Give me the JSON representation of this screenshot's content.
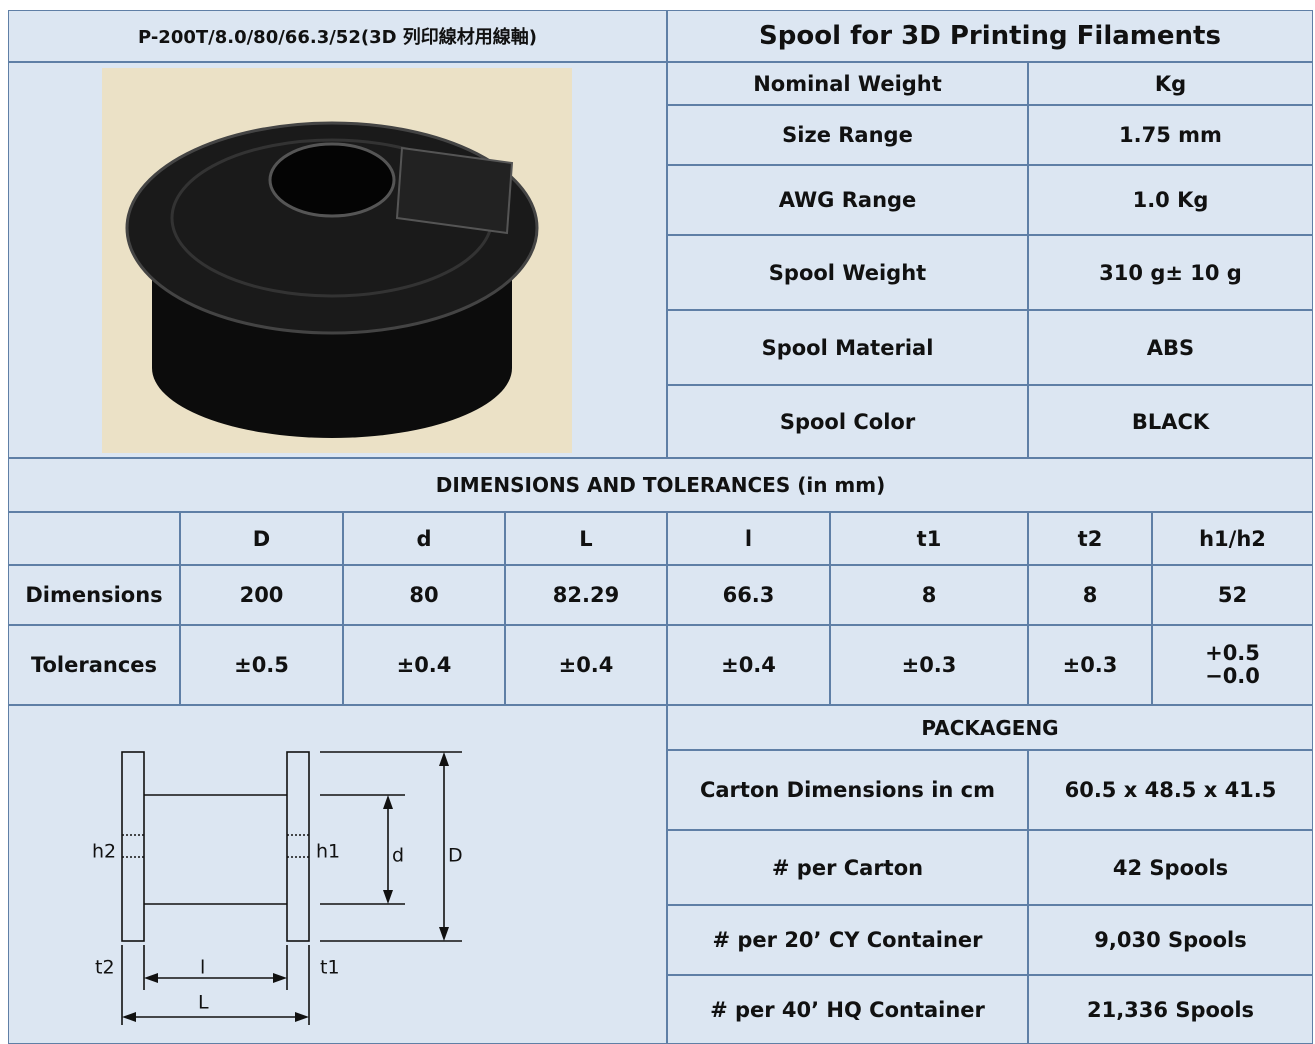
{
  "header": {
    "model": "P-200T/8.0/80/66.3/52(3D 列印線材用線軸)",
    "title": "Spool for 3D Printing Filaments"
  },
  "specs": [
    [
      "Nominal Weight",
      "Kg"
    ],
    [
      "Size Range",
      "1.75 mm"
    ],
    [
      "AWG Range",
      "1.0 Kg"
    ],
    [
      "Spool Weight",
      "310 g± 10 g"
    ],
    [
      "Spool Material",
      "ABS"
    ],
    [
      "Spool Color",
      "BLACK"
    ]
  ],
  "dimensions": {
    "title": "DIMENSIONS AND TOLERANCES (in mm)",
    "columns": [
      "D",
      "d",
      "L",
      "l",
      "t1",
      "t2",
      "h1/h2"
    ],
    "rows": [
      {
        "label": "Dimensions",
        "values": [
          "200",
          "80",
          "82.29",
          "66.3",
          "8",
          "8",
          "52"
        ]
      },
      {
        "label": "Tolerances",
        "values": [
          "±0.5",
          "±0.4",
          "±0.4",
          "±0.4",
          "±0.3",
          "±0.3",
          [
            "+0.5",
            "−0.0"
          ]
        ]
      }
    ]
  },
  "packaging": {
    "title": "PACKAGENG",
    "rows": [
      [
        "Carton Dimensions in cm",
        "60.5 x 48.5 x 41.5"
      ],
      [
        "# per Carton",
        "42 Spools"
      ],
      [
        "# per 20’ CY Container",
        "9,030 Spools"
      ],
      [
        "# per 40’ HQ Container",
        "21,336 Spools"
      ]
    ]
  },
  "diagram": {
    "h2": "h2",
    "h1": "h1",
    "d": "d",
    "D": "D",
    "t2": "t2",
    "l": "l",
    "t1": "t1",
    "L": "L"
  }
}
